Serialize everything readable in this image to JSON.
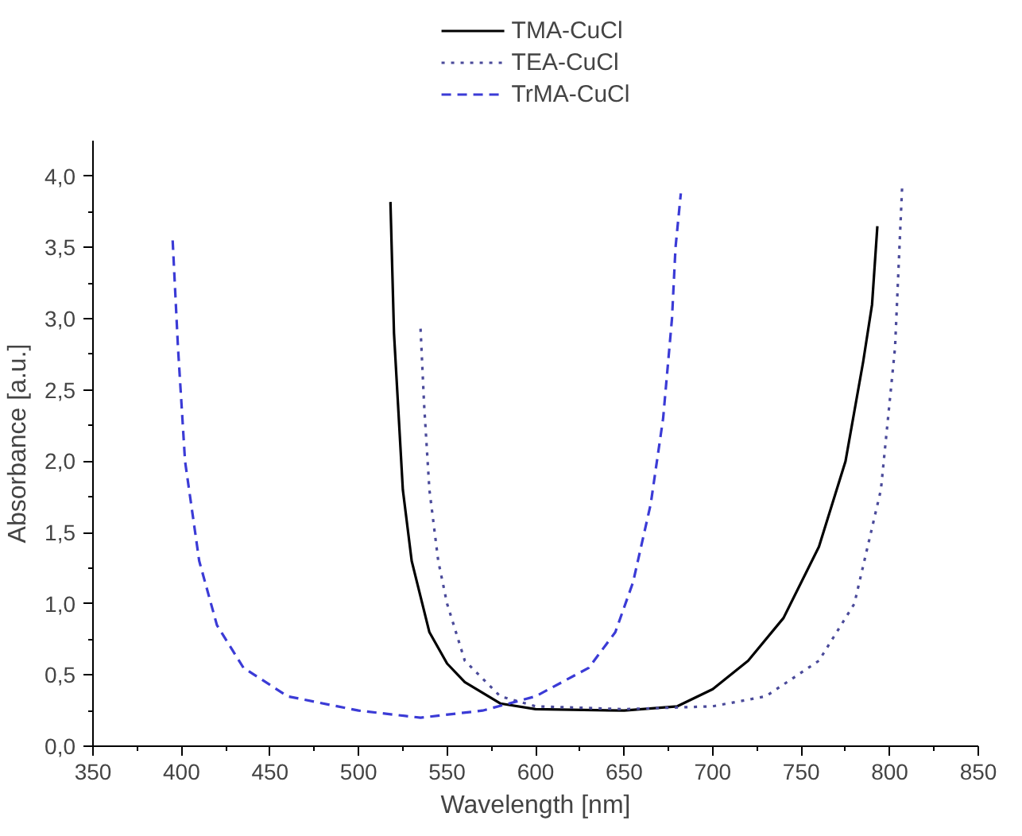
{
  "chart_data": {
    "type": "line",
    "xlabel": "Wavelength [nm]",
    "ylabel": "Absorbance [a.u.]",
    "xlim": [
      350,
      850
    ],
    "xticks": [
      350,
      400,
      450,
      500,
      550,
      600,
      650,
      700,
      750,
      800,
      850
    ],
    "ylim": [
      0,
      4.25
    ],
    "yticks": [
      {
        "value": 0,
        "label": "0,0"
      },
      {
        "value": 0.5,
        "label": "0,5"
      },
      {
        "value": 1,
        "label": "1,0"
      },
      {
        "value": 1.5,
        "label": "1,5"
      },
      {
        "value": 2,
        "label": "2,0"
      },
      {
        "value": 2.5,
        "label": "2,5"
      },
      {
        "value": 3,
        "label": "3,0"
      },
      {
        "value": 3.5,
        "label": "3,5"
      },
      {
        "value": 4,
        "label": "4,0"
      }
    ],
    "legend": "top",
    "grid": false,
    "series": [
      {
        "name": "TMA-CuCl",
        "color": "#000000",
        "line_style": "solid",
        "x": [
          518,
          520,
          525,
          530,
          540,
          550,
          560,
          580,
          600,
          650,
          680,
          700,
          720,
          740,
          760,
          775,
          785,
          790,
          793
        ],
        "values": [
          3.82,
          2.9,
          1.8,
          1.3,
          0.8,
          0.58,
          0.45,
          0.3,
          0.26,
          0.25,
          0.28,
          0.4,
          0.6,
          0.9,
          1.4,
          2.0,
          2.7,
          3.1,
          3.65
        ]
      },
      {
        "name": "TEA-CuCl",
        "color": "#4a4a9a",
        "line_style": "dotted",
        "x": [
          535,
          537,
          540,
          545,
          550,
          560,
          580,
          600,
          650,
          700,
          730,
          760,
          780,
          795,
          803,
          807
        ],
        "values": [
          2.93,
          2.4,
          1.8,
          1.3,
          1.0,
          0.6,
          0.35,
          0.28,
          0.26,
          0.28,
          0.35,
          0.6,
          1.0,
          1.8,
          2.8,
          3.93
        ]
      },
      {
        "name": "TrMA-CuCl",
        "color": "#3b3bd6",
        "line_style": "dashed",
        "x": [
          395,
          398,
          402,
          410,
          420,
          435,
          460,
          500,
          535,
          570,
          600,
          630,
          645,
          655,
          665,
          672,
          677,
          679,
          682
        ],
        "values": [
          3.55,
          2.8,
          2.0,
          1.3,
          0.85,
          0.55,
          0.35,
          0.25,
          0.2,
          0.25,
          0.35,
          0.55,
          0.8,
          1.15,
          1.7,
          2.3,
          3.0,
          3.5,
          3.88
        ]
      }
    ]
  }
}
